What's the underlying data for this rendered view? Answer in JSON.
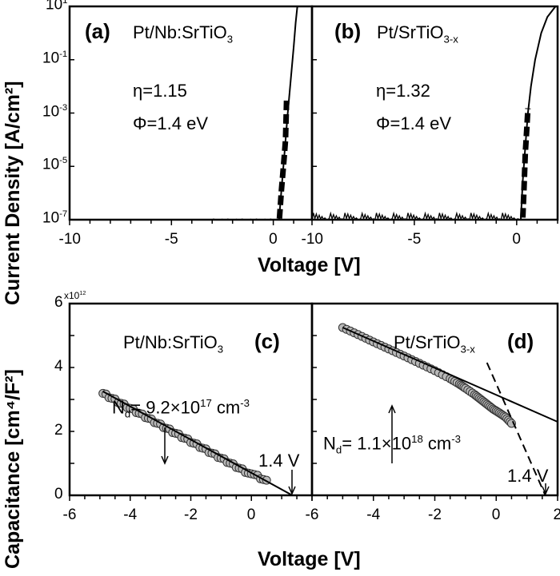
{
  "chart_data": [
    {
      "id": "a",
      "type": "line",
      "panel_label": "(a)",
      "sample": {
        "main": "Pt/Nb:SrTiO",
        "sub": "3"
      },
      "eta": "η=1.15",
      "phi": "Φ=1.4 eV",
      "xlabel": "Voltage [V]",
      "ylabel": "Current Density [A/cm²]",
      "xlim": [
        -10,
        1.9
      ],
      "ylim": [
        1e-07,
        10
      ],
      "yscale": "log",
      "xticks": [
        "-10",
        "-5",
        "0"
      ],
      "yticks": [
        {
          "base": "10",
          "exp": "1"
        },
        {
          "base": "10",
          "exp": "-1"
        },
        {
          "base": "10",
          "exp": "-3"
        },
        {
          "base": "10",
          "exp": "-5"
        },
        {
          "base": "10",
          "exp": "-7"
        }
      ],
      "noise": {
        "from": -3,
        "to": 0.25,
        "max": 1.3e-07
      },
      "fit": [
        [
          0.28,
          1e-07
        ],
        [
          0.4,
          1.3e-06
        ],
        [
          0.55,
          3e-05
        ],
        [
          0.7,
          0.0008
        ],
        [
          0.85,
          0.016
        ],
        [
          1.0,
          0.3
        ],
        [
          1.1,
          2.5
        ],
        [
          1.18,
          10
        ]
      ],
      "measured": [
        [
          0.3,
          1.1e-07
        ],
        [
          0.4,
          1.3e-06
        ],
        [
          0.5,
          1.1e-05
        ],
        [
          0.55,
          3e-05
        ],
        [
          0.6,
          0.0001
        ],
        [
          0.65,
          0.003
        ]
      ]
    },
    {
      "id": "b",
      "type": "line",
      "panel_label": "(b)",
      "sample": {
        "main": "Pt/SrTiO",
        "sub": "3-x"
      },
      "eta": "η=1.32",
      "phi": "Φ=1.4 eV",
      "xlabel": "Voltage [V]",
      "xlim": [
        -10,
        2
      ],
      "ylim": [
        1e-07,
        10
      ],
      "yscale": "log",
      "xticks": [
        "-10",
        "-5",
        "0"
      ],
      "noise": {
        "from": -10,
        "to": 0.1,
        "max": 1.8e-07
      },
      "fit": [
        [
          0.2,
          1e-07
        ],
        [
          0.3,
          3e-06
        ],
        [
          0.45,
          0.0001
        ],
        [
          0.55,
          0.001
        ],
        [
          0.7,
          0.01
        ],
        [
          0.9,
          0.1
        ],
        [
          1.2,
          1
        ],
        [
          1.5,
          4
        ],
        [
          1.9,
          10
        ]
      ],
      "measured": [
        [
          0.3,
          1.2e-07
        ],
        [
          0.35,
          1e-06
        ],
        [
          0.42,
          3e-05
        ],
        [
          0.5,
          0.0003
        ],
        [
          0.55,
          0.0015
        ]
      ]
    },
    {
      "id": "c",
      "type": "scatter",
      "panel_label": "(c)",
      "sample": {
        "main": "Pt/Nb:SrTiO",
        "sub": "3"
      },
      "nd": {
        "prefix": "N",
        "sub": "d",
        "mid": "= 9.2×10",
        "exp": "17",
        "unit": " cm",
        "unit_exp": "-3"
      },
      "vbi_label": "1.4 V",
      "xlabel": "Voltage [V]",
      "ylabel": "Capacitance [cm⁴/F²]",
      "ymultiplier": {
        "base": "x10",
        "exp": "12"
      },
      "xlim": [
        -6,
        2
      ],
      "ylim": [
        0,
        6
      ],
      "xticks": [
        "-6",
        "-4",
        "-2",
        "0"
      ],
      "yticks": [
        "0",
        "2",
        "4",
        "6"
      ],
      "points_range": [
        -4.9,
        0.5
      ],
      "fit_line": [
        [
          -4.9,
          3.25
        ],
        [
          1.35,
          0
        ]
      ]
    },
    {
      "id": "d",
      "type": "scatter",
      "panel_label": "(d)",
      "sample": {
        "main": "Pt/SrTiO",
        "sub": "3-x"
      },
      "nd": {
        "prefix": "N",
        "sub": "d",
        "mid": "= 1.1×10",
        "exp": "18",
        "unit": " cm",
        "unit_exp": "-3"
      },
      "vbi_label": "1.4 V",
      "xlabel": "Voltage [V]",
      "xlim": [
        -6,
        2
      ],
      "ylim": [
        0,
        6
      ],
      "xticks": [
        "-6",
        "-4",
        "-2",
        "0",
        "2"
      ],
      "points": [
        [
          -5,
          5.25
        ],
        [
          -4.5,
          5.03
        ],
        [
          -4,
          4.8
        ],
        [
          -3.5,
          4.58
        ],
        [
          -3,
          4.36
        ],
        [
          -2.5,
          4.13
        ],
        [
          -2,
          3.9
        ],
        [
          -1.5,
          3.65
        ],
        [
          -1.2,
          3.48
        ],
        [
          -1,
          3.35
        ],
        [
          -0.7,
          3.15
        ],
        [
          -0.5,
          3.0
        ],
        [
          -0.3,
          2.85
        ],
        [
          -0.1,
          2.7
        ],
        [
          0.1,
          2.58
        ],
        [
          0.3,
          2.45
        ],
        [
          0.5,
          2.25
        ]
      ],
      "fit_line": [
        [
          -5,
          5.25
        ],
        [
          2,
          2.3
        ]
      ],
      "dashed_line": [
        [
          -0.3,
          4.15
        ],
        [
          1.6,
          0
        ]
      ]
    }
  ]
}
